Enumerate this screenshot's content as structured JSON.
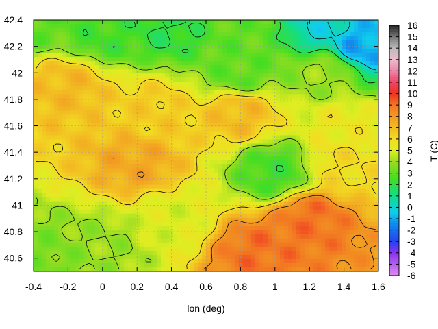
{
  "chart_data": {
    "type": "heatmap",
    "xlabel": "lon (deg)",
    "ylabel": "",
    "colorbar_label": "T (C)",
    "xlim": [
      -0.4,
      1.6
    ],
    "ylim": [
      40.5,
      42.4
    ],
    "xticks": [
      -0.4,
      -0.2,
      0,
      0.2,
      0.4,
      0.6,
      0.8,
      1,
      1.2,
      1.4,
      1.6
    ],
    "xtick_labels": [
      "-0.4",
      "-0.2",
      "0",
      "0.2",
      "0.4",
      "0.6",
      "0.8",
      "1",
      "1.2",
      "1.4",
      "1.6"
    ],
    "yticks": [
      40.6,
      40.8,
      41,
      41.2,
      41.4,
      41.6,
      41.8,
      42,
      42.2,
      42.4
    ],
    "ytick_labels": [
      "40.6",
      "40.8",
      "41",
      "41.2",
      "41.4",
      "41.6",
      "41.8",
      "42",
      "42.2",
      "42.4"
    ],
    "colorbar_range": [
      -6,
      16
    ],
    "colorbar_ticks": [
      -6,
      -5,
      -4,
      -3,
      -2,
      -1,
      0,
      1,
      2,
      3,
      4,
      5,
      6,
      7,
      8,
      9,
      10,
      11,
      12,
      13,
      14,
      15,
      16
    ],
    "colorbar_tick_labels": [
      "-6",
      "-5",
      "-4",
      "-3",
      "-2",
      "-1",
      "0",
      "1",
      "2",
      "3",
      "4",
      "5",
      "6",
      "7",
      "8",
      "9",
      "10",
      "11",
      "12",
      "13",
      "14",
      "15",
      "16"
    ],
    "colormap_stops": [
      {
        "value": -6,
        "color": "#dd88ee"
      },
      {
        "value": -4,
        "color": "#8833ee"
      },
      {
        "value": -3,
        "color": "#2244ee"
      },
      {
        "value": -1.5,
        "color": "#1188ee"
      },
      {
        "value": -0.5,
        "color": "#11ccee"
      },
      {
        "value": 1,
        "color": "#11dd88"
      },
      {
        "value": 2.5,
        "color": "#44dd22"
      },
      {
        "value": 4,
        "color": "#99dd22"
      },
      {
        "value": 5,
        "color": "#ddee22"
      },
      {
        "value": 6,
        "color": "#f2dd22"
      },
      {
        "value": 7,
        "color": "#f2bb22"
      },
      {
        "value": 8,
        "color": "#f29922"
      },
      {
        "value": 9,
        "color": "#f27722"
      },
      {
        "value": 10,
        "color": "#ee3322"
      },
      {
        "value": 11,
        "color": "#ee4466"
      },
      {
        "value": 12,
        "color": "#ee88aa"
      },
      {
        "value": 13,
        "color": "#eebbcc"
      },
      {
        "value": 14,
        "color": "#bbbbbb"
      },
      {
        "value": 15,
        "color": "#777777"
      },
      {
        "value": 16,
        "color": "#222222"
      }
    ],
    "grid": true,
    "contours": true,
    "field_description_points": [
      {
        "lon": -0.4,
        "lat": 42.4,
        "T": 3
      },
      {
        "lon": 0.0,
        "lat": 42.3,
        "T": 2.5
      },
      {
        "lon": 0.4,
        "lat": 42.35,
        "T": 2
      },
      {
        "lon": 0.8,
        "lat": 42.3,
        "T": 3
      },
      {
        "lon": 1.3,
        "lat": 42.35,
        "T": 0
      },
      {
        "lon": 1.5,
        "lat": 42.2,
        "T": -1
      },
      {
        "lon": 0.8,
        "lat": 42.0,
        "T": 3
      },
      {
        "lon": 1.3,
        "lat": 42.0,
        "T": 4
      },
      {
        "lon": -0.2,
        "lat": 41.9,
        "T": 7
      },
      {
        "lon": 0.3,
        "lat": 41.7,
        "T": 6.5
      },
      {
        "lon": 0.8,
        "lat": 41.7,
        "T": 7
      },
      {
        "lon": 1.4,
        "lat": 41.6,
        "T": 5.5
      },
      {
        "lon": 0.2,
        "lat": 41.3,
        "T": 7.5
      },
      {
        "lon": 1.0,
        "lat": 41.25,
        "T": 2.5
      },
      {
        "lon": 1.4,
        "lat": 41.3,
        "T": 6
      },
      {
        "lon": 1.2,
        "lat": 40.9,
        "T": 9
      },
      {
        "lon": 0.9,
        "lat": 40.65,
        "T": 9
      },
      {
        "lon": 0.0,
        "lat": 40.7,
        "T": 4
      },
      {
        "lon": -0.3,
        "lat": 40.6,
        "T": 3.5
      },
      {
        "lon": 0.4,
        "lat": 40.9,
        "T": 5
      }
    ]
  }
}
